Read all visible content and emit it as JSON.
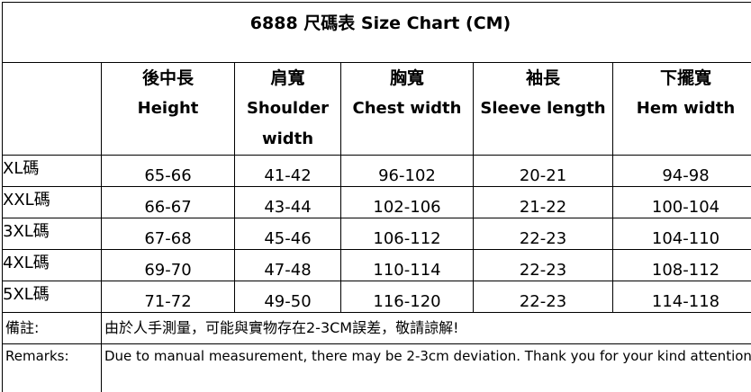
{
  "title": "6888 尺碼表 Size Chart (CM)",
  "header": [
    {
      "zh": "後中長",
      "en": "Height"
    },
    {
      "zh": "肩寬",
      "en": "Shoulder width"
    },
    {
      "zh": "胸寬",
      "en": "Chest width"
    },
    {
      "zh": "袖長",
      "en": "Sleeve length"
    },
    {
      "zh": "下擺寬",
      "en": "Hem width"
    }
  ],
  "rows": [
    [
      "XL碼",
      "65-66",
      "41-42",
      "96-102",
      "20-21",
      "94-98"
    ],
    [
      "XXL碼",
      "66-67",
      "43-44",
      "102-106",
      "21-22",
      "100-104"
    ],
    [
      "3XL碼",
      "67-68",
      "45-46",
      "106-112",
      "22-23",
      "104-110"
    ],
    [
      "4XL碼",
      "69-70",
      "47-48",
      "110-114",
      "22-23",
      "108-112"
    ],
    [
      "5XL碼",
      "71-72",
      "49-50",
      "116-120",
      "22-23",
      "114-118"
    ]
  ],
  "notes": {
    "label": "備註:",
    "text": "由於人手測量，可能與實物存在2-3CM誤差，敬請諒解!"
  },
  "remarks": {
    "label": "Remarks:",
    "text": "Due to manual measurement, there may be 2-3cm deviation. Thank you for your kind attention"
  }
}
